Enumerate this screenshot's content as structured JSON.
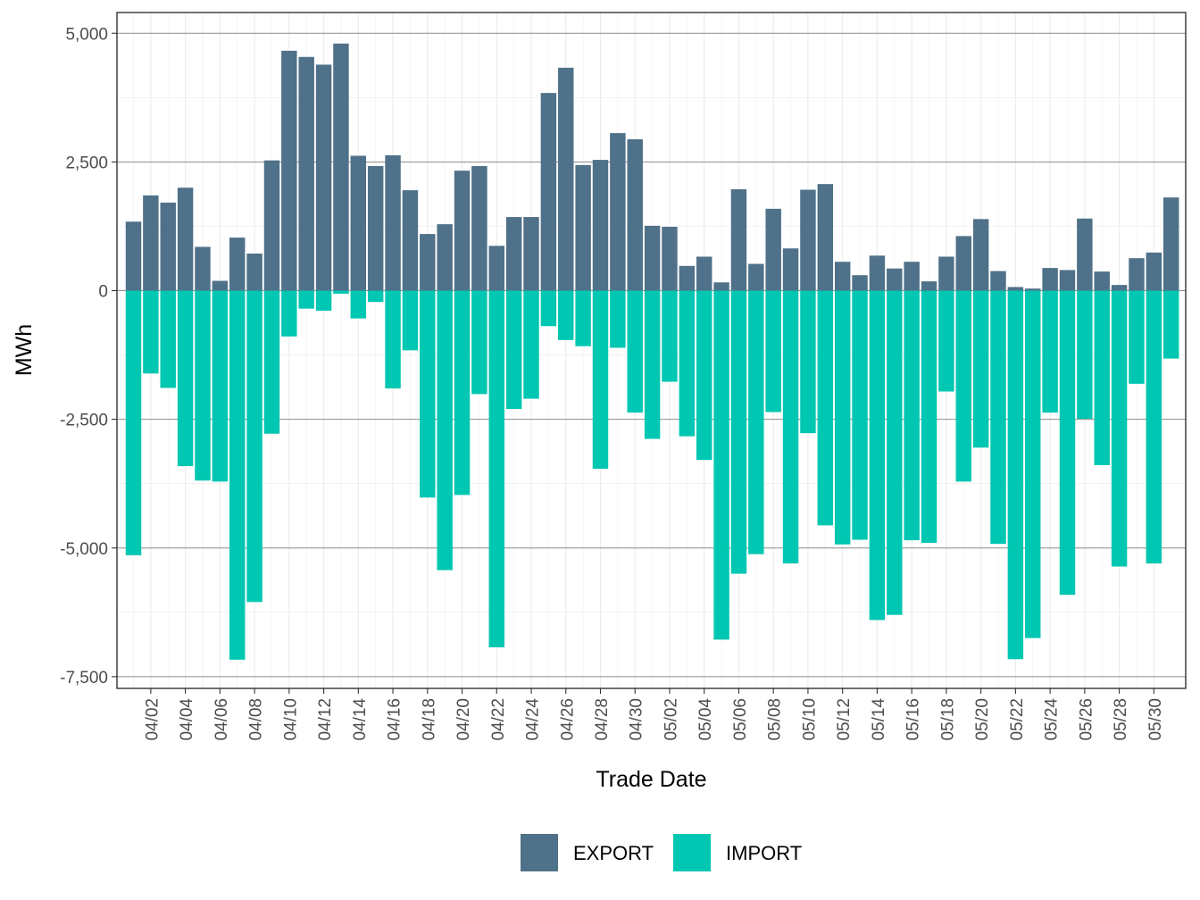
{
  "chart_data": {
    "type": "bar",
    "stacked": "diverging",
    "title": "",
    "xlabel": "Trade Date",
    "ylabel": "MWh",
    "ylim": [
      -7750,
      5400
    ],
    "yticks": [
      5000,
      2500,
      0,
      -2500,
      -5000,
      -7500
    ],
    "ytick_labels": [
      "5,000",
      "2,500",
      "0",
      "-2,500",
      "-5,000",
      "-7,500"
    ],
    "grid": true,
    "legend_position": "bottom",
    "colors": {
      "EXPORT": "#4f7189",
      "IMPORT": "#00c7b1"
    },
    "categories": [
      "04/01",
      "04/02",
      "04/03",
      "04/04",
      "04/05",
      "04/06",
      "04/07",
      "04/08",
      "04/09",
      "04/10",
      "04/11",
      "04/12",
      "04/13",
      "04/14",
      "04/15",
      "04/16",
      "04/17",
      "04/18",
      "04/19",
      "04/20",
      "04/21",
      "04/22",
      "04/23",
      "04/24",
      "04/25",
      "04/26",
      "04/27",
      "04/28",
      "04/29",
      "04/30",
      "05/01",
      "05/02",
      "05/03",
      "05/04",
      "05/05",
      "05/06",
      "05/07",
      "05/08",
      "05/09",
      "05/10",
      "05/11",
      "05/12",
      "05/13",
      "05/14",
      "05/15",
      "05/16",
      "05/17",
      "05/18",
      "05/19",
      "05/20",
      "05/21",
      "05/22",
      "05/23",
      "05/24",
      "05/25",
      "05/26",
      "05/27",
      "05/28",
      "05/29",
      "05/30",
      "05/31"
    ],
    "x_tick_labels": [
      "04/02",
      "04/04",
      "04/06",
      "04/08",
      "04/10",
      "04/12",
      "04/14",
      "04/16",
      "04/18",
      "04/20",
      "04/22",
      "04/24",
      "04/26",
      "04/28",
      "04/30",
      "05/02",
      "05/04",
      "05/06",
      "05/08",
      "05/10",
      "05/12",
      "05/14",
      "05/16",
      "05/18",
      "05/20",
      "05/22",
      "05/24",
      "05/26",
      "05/28",
      "05/30"
    ],
    "series": [
      {
        "name": "EXPORT",
        "values": [
          1340,
          1850,
          1710,
          2000,
          850,
          190,
          1030,
          720,
          2530,
          4660,
          4540,
          4390,
          4800,
          2620,
          2420,
          2630,
          1950,
          1100,
          1290,
          2330,
          2420,
          870,
          1430,
          1430,
          3840,
          4330,
          2440,
          2540,
          3060,
          2940,
          1260,
          1240,
          480,
          660,
          160,
          1970,
          520,
          1590,
          820,
          1960,
          2070,
          560,
          300,
          680,
          430,
          560,
          180,
          660,
          1060,
          1390,
          380,
          70,
          40,
          440,
          400,
          1400,
          370,
          110,
          630,
          740,
          1810
        ]
      },
      {
        "name": "IMPORT",
        "values": [
          -5140,
          -1610,
          -1890,
          -3410,
          -3690,
          -3710,
          -7170,
          -6050,
          -2780,
          -890,
          -350,
          -390,
          -60,
          -540,
          -220,
          -1900,
          -1160,
          -4020,
          -5430,
          -3970,
          -2010,
          -6930,
          -2300,
          -2100,
          -690,
          -960,
          -1080,
          -3460,
          -1110,
          -2370,
          -2880,
          -1770,
          -2830,
          -3290,
          -6780,
          -5500,
          -5120,
          -2360,
          -5300,
          -2770,
          -4560,
          -4930,
          -4840,
          -6400,
          -6300,
          -4850,
          -4900,
          -1960,
          -3710,
          -3050,
          -4920,
          -7160,
          -6750,
          -2370,
          -5910,
          -2490,
          -3390,
          -5360,
          -1810,
          -5300,
          -1320
        ]
      }
    ]
  }
}
